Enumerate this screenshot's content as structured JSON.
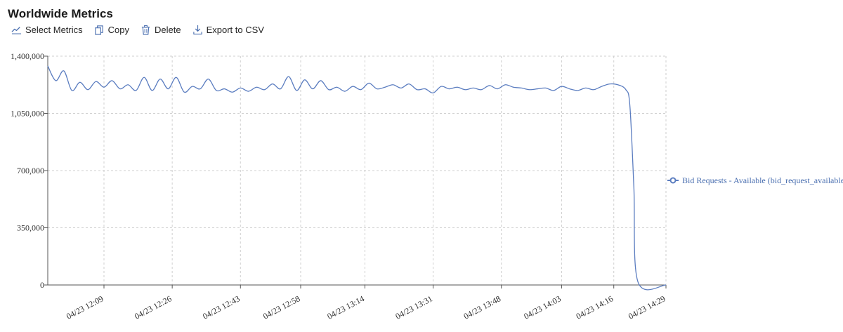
{
  "header": {
    "title": "Worldwide Metrics"
  },
  "toolbar": {
    "select_metrics": "Select Metrics",
    "copy": "Copy",
    "delete": "Delete",
    "export": "Export to CSV"
  },
  "colors": {
    "series": "#5b7dc0",
    "grid": "#cfcfcf",
    "axis": "#555555"
  },
  "chart_data": {
    "type": "line",
    "title": "",
    "xlabel": "",
    "ylabel": "",
    "grid": true,
    "legend_position": "right",
    "ylim": [
      0,
      1400000
    ],
    "yticks": [
      0,
      350000,
      700000,
      1050000,
      1400000
    ],
    "ytick_labels": [
      "0",
      "350,000",
      "700,000",
      "1,050,000",
      "1,400,000"
    ],
    "xlim": [
      "04/23 11:55",
      "04/23 14:29"
    ],
    "xticks": [
      "04/23 12:09",
      "04/23 12:26",
      "04/23 12:43",
      "04/23 12:58",
      "04/23 13:14",
      "04/23 13:31",
      "04/23 13:48",
      "04/23 14:03",
      "04/23 14:16",
      "04/23 14:29"
    ],
    "series": [
      {
        "name": "Bid Requests - Available (bid_request_available)",
        "x": [
          "04/23 11:55",
          "04/23 11:57",
          "04/23 11:59",
          "04/23 12:01",
          "04/23 12:03",
          "04/23 12:05",
          "04/23 12:07",
          "04/23 12:09",
          "04/23 12:11",
          "04/23 12:13",
          "04/23 12:15",
          "04/23 12:17",
          "04/23 12:19",
          "04/23 12:21",
          "04/23 12:23",
          "04/23 12:25",
          "04/23 12:27",
          "04/23 12:29",
          "04/23 12:31",
          "04/23 12:33",
          "04/23 12:35",
          "04/23 12:37",
          "04/23 12:39",
          "04/23 12:41",
          "04/23 12:43",
          "04/23 12:45",
          "04/23 12:47",
          "04/23 12:49",
          "04/23 12:51",
          "04/23 12:53",
          "04/23 12:55",
          "04/23 12:57",
          "04/23 12:59",
          "04/23 13:01",
          "04/23 13:03",
          "04/23 13:05",
          "04/23 13:07",
          "04/23 13:09",
          "04/23 13:11",
          "04/23 13:13",
          "04/23 13:15",
          "04/23 13:17",
          "04/23 13:19",
          "04/23 13:21",
          "04/23 13:23",
          "04/23 13:25",
          "04/23 13:27",
          "04/23 13:29",
          "04/23 13:31",
          "04/23 13:33",
          "04/23 13:35",
          "04/23 13:37",
          "04/23 13:39",
          "04/23 13:41",
          "04/23 13:43",
          "04/23 13:45",
          "04/23 13:47",
          "04/23 13:49",
          "04/23 13:51",
          "04/23 13:53",
          "04/23 13:55",
          "04/23 13:57",
          "04/23 13:59",
          "04/23 14:01",
          "04/23 14:03",
          "04/23 14:05",
          "04/23 14:07",
          "04/23 14:09",
          "04/23 14:11",
          "04/23 14:13",
          "04/23 14:15",
          "04/23 14:17",
          "04/23 14:19",
          "04/23 14:20",
          "04/23 14:21",
          "04/23 14:22",
          "04/23 14:29"
        ],
        "values": [
          1340000,
          1250000,
          1310000,
          1190000,
          1240000,
          1195000,
          1245000,
          1210000,
          1250000,
          1200000,
          1225000,
          1190000,
          1270000,
          1190000,
          1260000,
          1200000,
          1270000,
          1180000,
          1215000,
          1200000,
          1260000,
          1190000,
          1200000,
          1180000,
          1205000,
          1185000,
          1210000,
          1195000,
          1230000,
          1200000,
          1275000,
          1190000,
          1255000,
          1200000,
          1250000,
          1195000,
          1210000,
          1185000,
          1215000,
          1195000,
          1235000,
          1200000,
          1210000,
          1225000,
          1205000,
          1230000,
          1195000,
          1200000,
          1175000,
          1215000,
          1200000,
          1210000,
          1195000,
          1205000,
          1195000,
          1220000,
          1200000,
          1225000,
          1210000,
          1205000,
          1195000,
          1200000,
          1205000,
          1190000,
          1215000,
          1200000,
          1190000,
          1205000,
          1195000,
          1215000,
          1230000,
          1225000,
          1195000,
          1100000,
          600000,
          20000,
          0
        ]
      }
    ]
  }
}
